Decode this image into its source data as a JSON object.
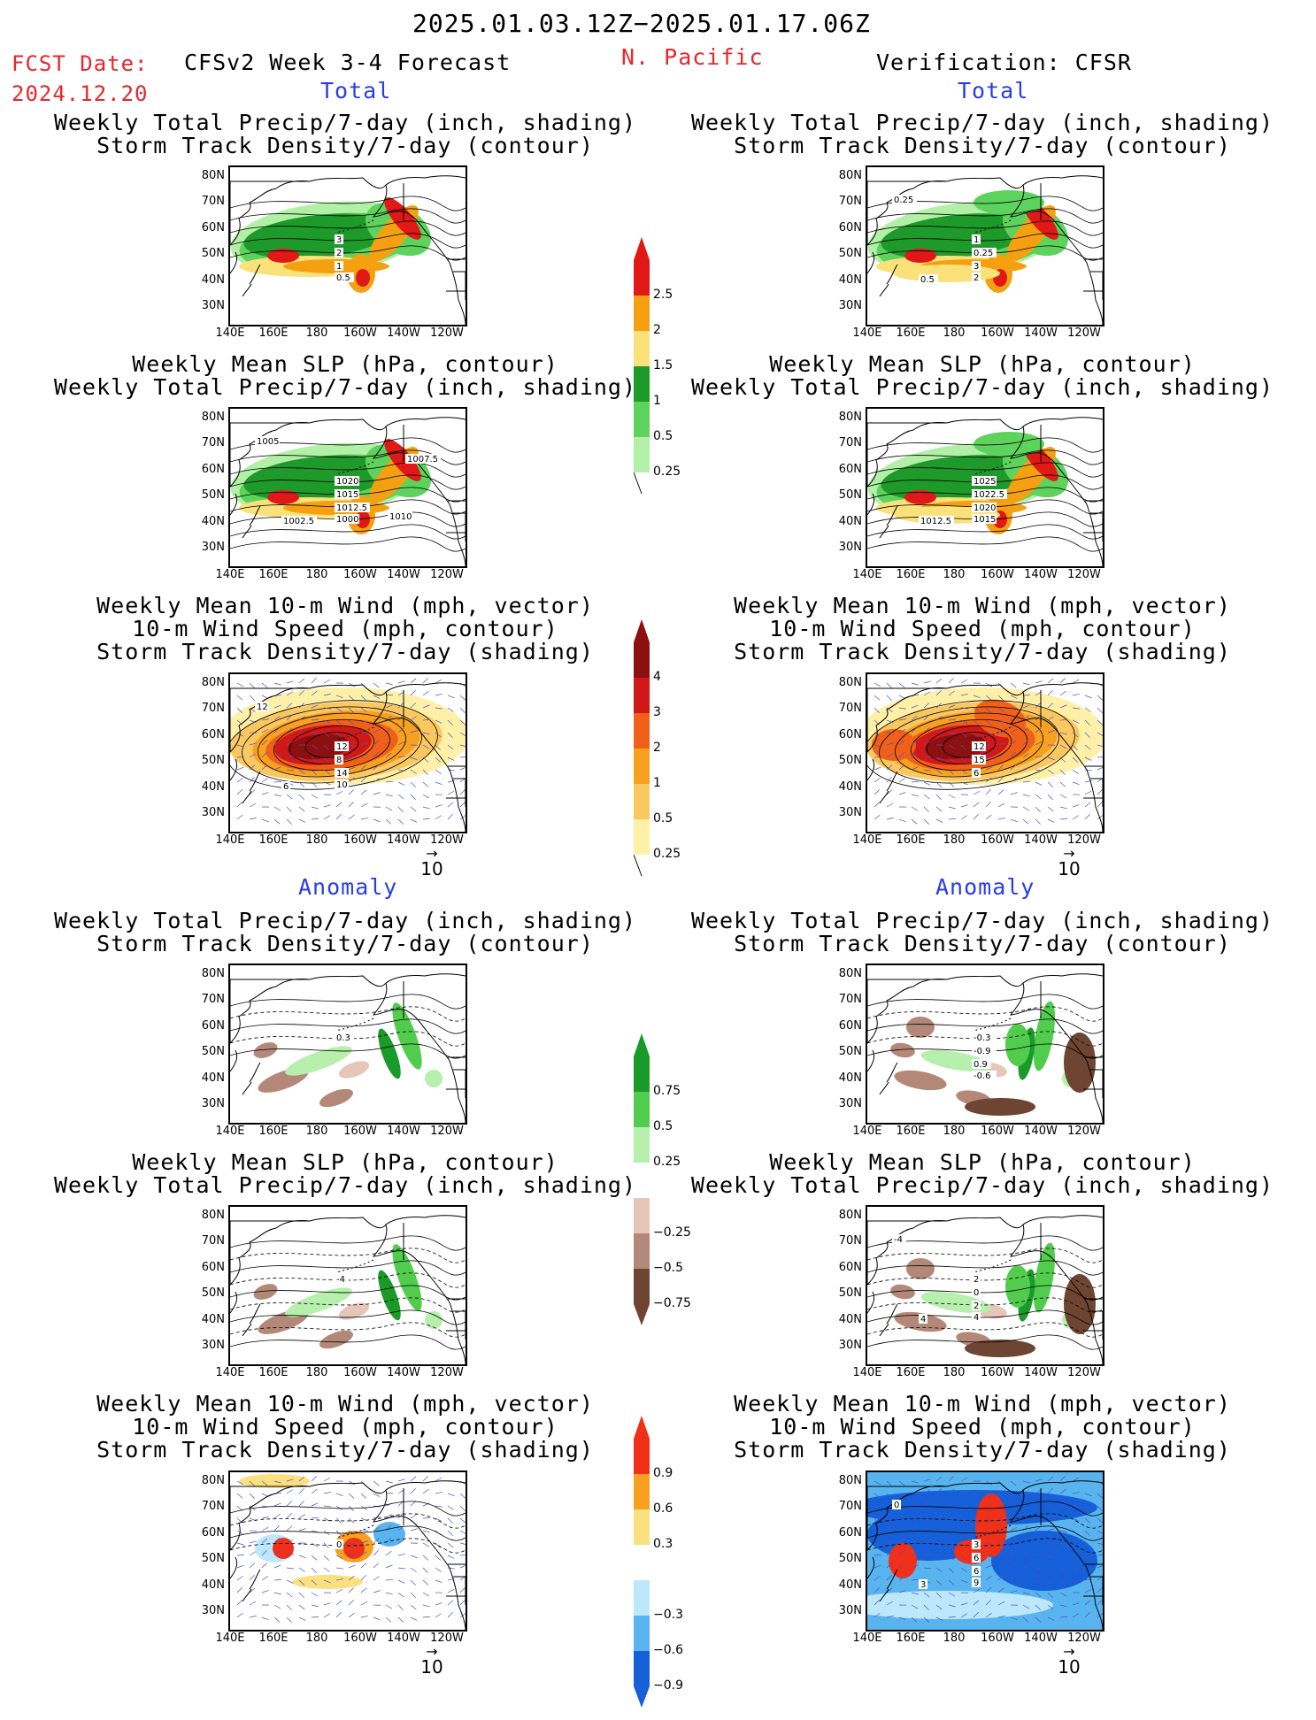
{
  "header": {
    "period": "2025.01.03.12Z−2025.01.17.06Z",
    "fcst_label": "FCST Date:",
    "fcst_date": "2024.12.20",
    "model": "CFSv2 Week 3-4 Forecast",
    "region": "N. Pacific",
    "verification": "Verification: CFSR"
  },
  "sections": {
    "total": "Total",
    "anomaly": "Anomaly"
  },
  "titles": {
    "precip_storm": [
      "Weekly Total Precip/7-day (inch, shading)",
      "Storm Track Density/7-day (contour)"
    ],
    "slp_precip": [
      "Weekly Mean SLP (hPa, contour)",
      "Weekly Total Precip/7-day (inch, shading)"
    ],
    "wind_storm": [
      "Weekly Mean 10-m Wind (mph, vector)",
      "10-m Wind Speed (mph, contour)",
      "Storm Track Density/7-day (shading)"
    ]
  },
  "axes": {
    "lat": [
      "80N",
      "70N",
      "60N",
      "50N",
      "40N",
      "30N"
    ],
    "lon": [
      "140E",
      "160E",
      "180",
      "160W",
      "140W",
      "120W"
    ]
  },
  "vector_ref": "10",
  "colorbars": {
    "precip_total": {
      "labels": [
        "2.5",
        "2",
        "1.5",
        "1",
        "0.5",
        "0.25"
      ],
      "colors": [
        "#e01818",
        "#f5a010",
        "#fbe17a",
        "#1e9a2a",
        "#5dd35d",
        "#b2f0a8"
      ]
    },
    "storm_total": {
      "labels": [
        "4",
        "3",
        "2",
        "1",
        "0.5",
        "0.25"
      ],
      "colors": [
        "#8c1010",
        "#d01818",
        "#f06018",
        "#f8a020",
        "#fac860",
        "#fff0a8"
      ]
    },
    "precip_anom": {
      "labels": [
        "0.75",
        "0.5",
        "0.25",
        "−0.25",
        "−0.5",
        "−0.75"
      ],
      "colors": [
        "#1a9a28",
        "#52cc4c",
        "#b6f0ac",
        "#ffffff",
        "#e6c6b8",
        "#b48878",
        "#6e4432"
      ]
    },
    "storm_anom": {
      "labels": [
        "0.9",
        "0.6",
        "0.3",
        "−0.3",
        "−0.6",
        "−0.9"
      ],
      "colors": [
        "#f03018",
        "#f8a020",
        "#fbe080",
        "#ffffff",
        "#bde8fb",
        "#58b4ee",
        "#1560d8"
      ]
    }
  },
  "contour_labels": {
    "p1": [
      "3",
      "2",
      "1",
      "0.5"
    ],
    "p2": [
      "1",
      "0.25",
      "3",
      "2",
      "0.5",
      "0.25"
    ],
    "p3": [
      "1020",
      "1015",
      "1012.5",
      "1000",
      "1002.5",
      "1005",
      "1007.5",
      "1010"
    ],
    "p4": [
      "1025",
      "1022.5",
      "1020",
      "1015",
      "1012.5"
    ],
    "p5": [
      "12",
      "8",
      "14",
      "10",
      "6",
      "12"
    ],
    "p6": [
      "12",
      "15",
      "6"
    ],
    "p7": [
      "0.3"
    ],
    "p8": [
      "-0.3",
      "-0.9",
      "0.9",
      "-0.6"
    ],
    "p9": [
      "-4"
    ],
    "p10": [
      "2",
      "0",
      "2",
      "4",
      "4",
      "-4"
    ],
    "p11": [
      "0"
    ],
    "p12": [
      "3",
      "6",
      "6",
      "9",
      "3",
      "0"
    ]
  }
}
